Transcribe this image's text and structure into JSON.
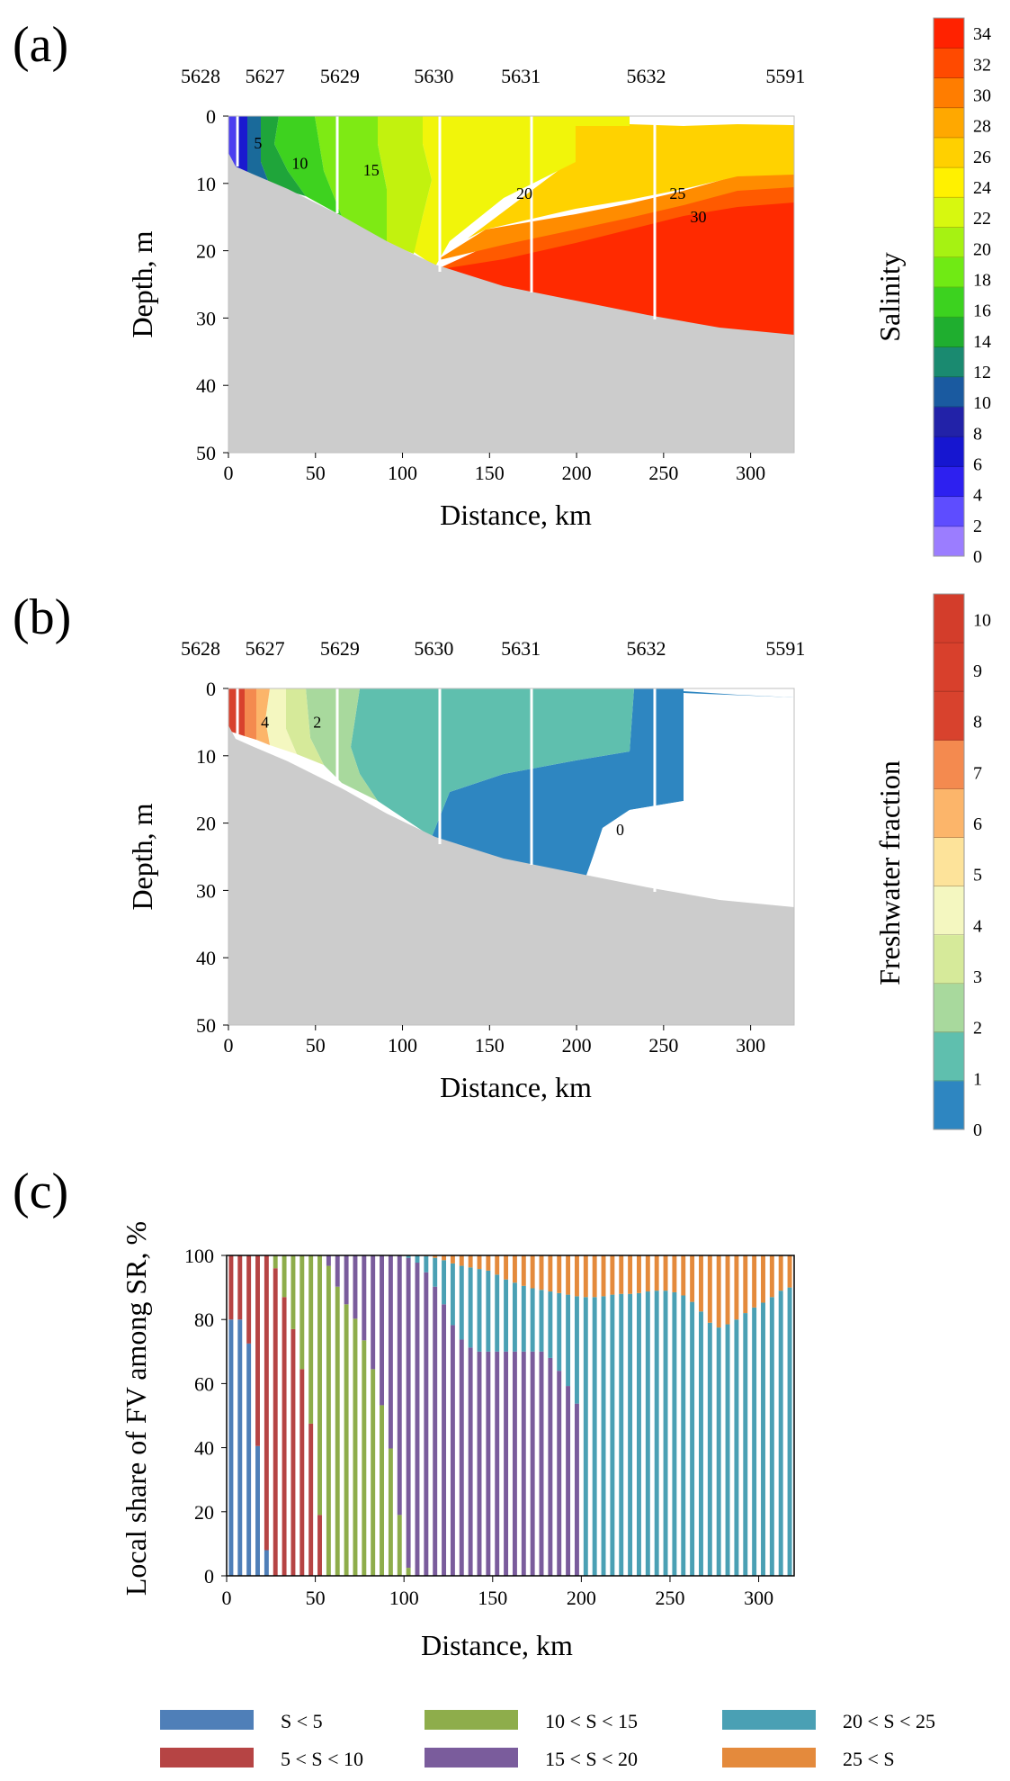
{
  "panel_a": {
    "letter": "(a)",
    "stations": [
      {
        "id": "5628",
        "km": -16
      },
      {
        "id": "5627",
        "km": 21
      },
      {
        "id": "5629",
        "km": 64
      },
      {
        "id": "5630",
        "km": 118
      },
      {
        "id": "5631",
        "km": 168
      },
      {
        "id": "5632",
        "km": 240
      },
      {
        "id": "5591",
        "km": 320
      }
    ],
    "colorbar_label": "Salinity",
    "colorbar_ticks": [
      "0",
      "2",
      "4",
      "6",
      "8",
      "10",
      "12",
      "14",
      "16",
      "18",
      "20",
      "22",
      "24",
      "26",
      "28",
      "30",
      "32",
      "34"
    ],
    "contour_labels": [
      {
        "text": "5",
        "km": 17,
        "depth": 4
      },
      {
        "text": "10",
        "km": 41,
        "depth": 7
      },
      {
        "text": "15",
        "km": 82,
        "depth": 8
      },
      {
        "text": "20",
        "km": 170,
        "depth": 11.5
      },
      {
        "text": "25",
        "km": 258,
        "depth": 11.5
      },
      {
        "text": "30",
        "km": 270,
        "depth": 15
      }
    ]
  },
  "panel_b": {
    "letter": "(b)",
    "stations": [
      {
        "id": "5628",
        "km": -16
      },
      {
        "id": "5627",
        "km": 21
      },
      {
        "id": "5629",
        "km": 64
      },
      {
        "id": "5630",
        "km": 118
      },
      {
        "id": "5631",
        "km": 168
      },
      {
        "id": "5632",
        "km": 240
      },
      {
        "id": "5591",
        "km": 320
      }
    ],
    "colorbar_label": "Freshwater fraction",
    "colorbar_ticks": [
      "0",
      "1",
      "2",
      "3",
      "4",
      "5",
      "6",
      "7",
      "8",
      "9",
      "10"
    ],
    "contour_labels": [
      {
        "text": "4",
        "km": 21,
        "depth": 5
      },
      {
        "text": "2",
        "km": 51,
        "depth": 5
      },
      {
        "text": "0",
        "km": 225,
        "depth": 21
      }
    ]
  },
  "section_axes": {
    "xlabel": "Distance, km",
    "ylabel": "Depth, m",
    "xticks": [
      "0",
      "50",
      "100",
      "150",
      "200",
      "250",
      "300"
    ],
    "yticks": [
      "0",
      "10",
      "20",
      "30",
      "40",
      "50"
    ],
    "xlim": [
      0,
      325
    ],
    "ylim": [
      0,
      50
    ]
  },
  "colors": {
    "salinity_scale": [
      "#9b7dff",
      "#5e4dff",
      "#2d20f0",
      "#1616d0",
      "#2222a8",
      "#1a5aa0",
      "#1a8a70",
      "#1fae2f",
      "#3cd21f",
      "#70ea14",
      "#a6f212",
      "#d7f80f",
      "#fff100",
      "#ffd000",
      "#ffa800",
      "#ff7d00",
      "#ff4a00",
      "#ff2200"
    ],
    "freshwater_scale": [
      "#2e86c1",
      "#5fbfae",
      "#a8d99d",
      "#d6ea9a",
      "#f4f7c0",
      "#fde39a",
      "#fcb56a",
      "#f48a4f",
      "#d8422d",
      "#d8402c",
      "#d33d2b"
    ],
    "bottom": "#cccccc",
    "series": {
      "S<5": "#4f7fb8",
      "5<S<10": "#b64444",
      "10<S<15": "#8ead4b",
      "15<S<20": "#7a5c9c",
      "20<S<25": "#4aa0b4",
      "25<S": "#e48a3c"
    }
  },
  "panel_c": {
    "letter": "(c)"
  },
  "chart_data": {
    "type": "bar",
    "stacked": true,
    "title": "",
    "xlabel": "Distance, km",
    "ylabel": "Local share of FV among SR, %",
    "xlim": [
      0,
      320
    ],
    "ylim": [
      0,
      100
    ],
    "xticks": [
      "0",
      "50",
      "100",
      "150",
      "200",
      "250",
      "300"
    ],
    "yticks": [
      "0",
      "20",
      "40",
      "60",
      "80",
      "100"
    ],
    "bar_spacing_km": 5,
    "series_order": [
      "S<5",
      "5<S<10",
      "10<S<15",
      "15<S<20",
      "20<S<25",
      "25<S"
    ],
    "legend": [
      {
        "key": "S<5",
        "label": "S < 5"
      },
      {
        "key": "10<S<15",
        "label": "10 < S < 15"
      },
      {
        "key": "20<S<25",
        "label": "20 < S < 25"
      },
      {
        "key": "5<S<10",
        "label": "5 < S < 10"
      },
      {
        "key": "15<S<20",
        "label": "15 < S < 20"
      },
      {
        "key": "25<S",
        "label": "25 < S"
      }
    ],
    "boundary_profiles": {
      "S<5": [
        [
          0,
          80
        ],
        [
          10,
          80
        ],
        [
          15,
          65
        ],
        [
          20,
          16
        ],
        [
          25,
          0
        ]
      ],
      "S<10": [
        [
          0,
          100
        ],
        [
          25,
          100
        ],
        [
          30,
          92
        ],
        [
          40,
          72
        ],
        [
          45,
          57
        ],
        [
          50,
          38
        ],
        [
          55,
          0
        ]
      ],
      "S<15": [
        [
          0,
          100
        ],
        [
          55,
          100
        ],
        [
          65,
          87
        ],
        [
          75,
          78
        ],
        [
          85,
          60
        ],
        [
          95,
          33
        ],
        [
          100,
          5
        ],
        [
          105,
          0
        ]
      ],
      "S<20": [
        [
          0,
          100
        ],
        [
          100,
          100
        ],
        [
          110,
          97
        ],
        [
          120,
          88
        ],
        [
          130,
          75
        ],
        [
          140,
          70
        ],
        [
          180,
          70
        ],
        [
          190,
          62
        ],
        [
          200,
          51
        ],
        [
          202,
          0
        ]
      ],
      "S<25": [
        [
          0,
          100
        ],
        [
          110,
          100
        ],
        [
          120,
          99
        ],
        [
          130,
          97
        ],
        [
          140,
          96
        ],
        [
          150,
          95
        ],
        [
          155,
          93
        ],
        [
          160,
          92
        ],
        [
          170,
          90
        ],
        [
          180,
          89
        ],
        [
          190,
          88
        ],
        [
          200,
          87
        ],
        [
          210,
          87
        ],
        [
          220,
          88
        ],
        [
          230,
          88
        ],
        [
          240,
          89
        ],
        [
          250,
          89
        ],
        [
          260,
          87
        ],
        [
          270,
          81
        ],
        [
          275,
          77
        ],
        [
          285,
          79
        ],
        [
          295,
          83
        ],
        [
          305,
          86
        ],
        [
          315,
          90
        ],
        [
          320,
          90
        ]
      ]
    }
  }
}
